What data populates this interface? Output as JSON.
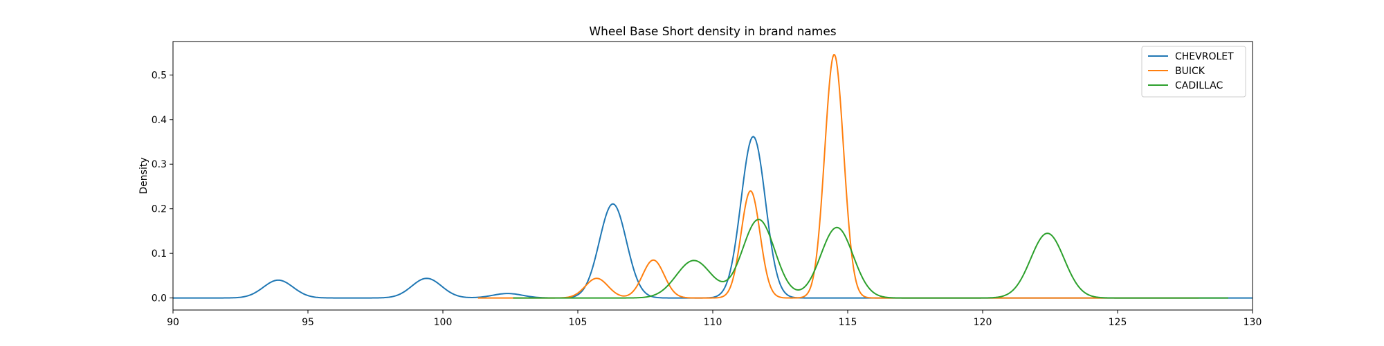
{
  "chart_data": {
    "type": "line",
    "title": "Wheel Base Short density in brand names",
    "xlabel": "",
    "ylabel": "Density",
    "xlim": [
      90,
      130
    ],
    "ylim": [
      -0.027,
      0.575
    ],
    "xticks": [
      90,
      95,
      100,
      105,
      110,
      115,
      120,
      125,
      130
    ],
    "xtick_labels": [
      "90",
      "95",
      "100",
      "105",
      "110",
      "115",
      "120",
      "125",
      "130"
    ],
    "yticks": [
      0.0,
      0.1,
      0.2,
      0.3,
      0.4,
      0.5
    ],
    "ytick_labels": [
      "0.0",
      "0.1",
      "0.2",
      "0.3",
      "0.4",
      "0.5"
    ],
    "grid": false,
    "legend_position": "top-right",
    "series": [
      {
        "name": "CHEVROLET",
        "color": "#1f77b4",
        "x_range": [
          90,
          130
        ],
        "peaks": [
          {
            "center": 93.9,
            "height": 0.04,
            "sigma": 0.55
          },
          {
            "center": 99.4,
            "height": 0.044,
            "sigma": 0.55
          },
          {
            "center": 102.4,
            "height": 0.01,
            "sigma": 0.55
          },
          {
            "center": 106.3,
            "height": 0.211,
            "sigma": 0.5
          },
          {
            "center": 111.5,
            "height": 0.362,
            "sigma": 0.45
          }
        ]
      },
      {
        "name": "BUICK",
        "color": "#ff7f0e",
        "x_range": [
          101.3,
          128
        ],
        "peaks": [
          {
            "center": 105.7,
            "height": 0.044,
            "sigma": 0.42
          },
          {
            "center": 107.8,
            "height": 0.085,
            "sigma": 0.4
          },
          {
            "center": 111.4,
            "height": 0.24,
            "sigma": 0.35
          },
          {
            "center": 114.5,
            "height": 0.546,
            "sigma": 0.35
          }
        ]
      },
      {
        "name": "CADILLAC",
        "color": "#2ca02c",
        "x_range": [
          102.6,
          129.1
        ],
        "peaks": [
          {
            "center": 109.3,
            "height": 0.084,
            "sigma": 0.65
          },
          {
            "center": 111.7,
            "height": 0.176,
            "sigma": 0.6
          },
          {
            "center": 114.6,
            "height": 0.158,
            "sigma": 0.6
          },
          {
            "center": 122.4,
            "height": 0.145,
            "sigma": 0.62
          }
        ]
      }
    ]
  }
}
